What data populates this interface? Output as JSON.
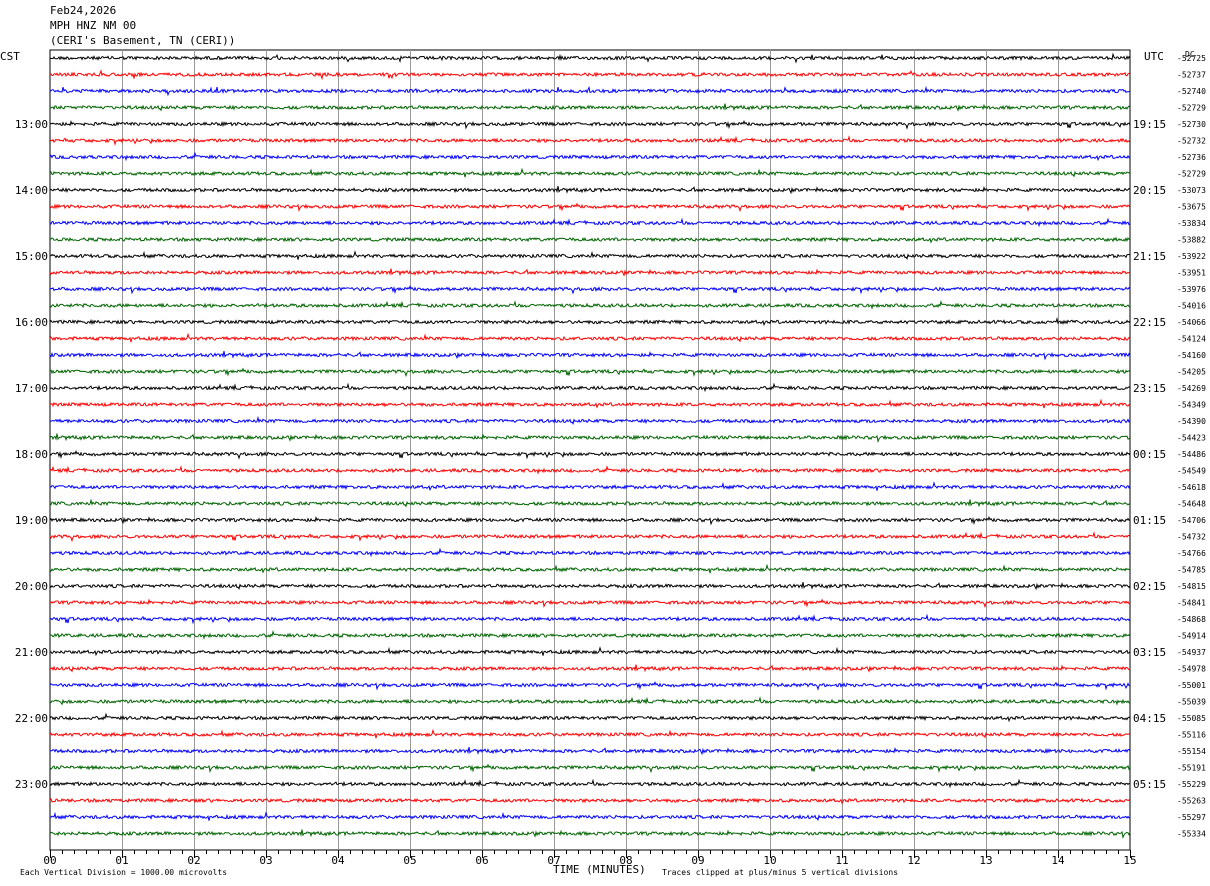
{
  "header": {
    "date": "Feb24,2026",
    "station": "MPH HNZ NM 00",
    "location": "(CERI's Basement, TN (CERI))"
  },
  "left_label": "CST",
  "right_label": "UTC",
  "dc_label": "DC",
  "footer": {
    "scale": "Each Vertical Division = 1000.00 microvolts",
    "clip": "Traces clipped at plus/minus 5 vertical divisions"
  },
  "colors": [
    "#000000",
    "#ff0000",
    "#0000ff",
    "#006400"
  ],
  "chart_data": {
    "type": "line",
    "title": "",
    "xlabel": "TIME (MINUTES)",
    "xlim": [
      0,
      15
    ],
    "x_ticks": [
      "00",
      "01",
      "02",
      "03",
      "04",
      "05",
      "06",
      "07",
      "08",
      "09",
      "10",
      "11",
      "12",
      "13",
      "14",
      "15"
    ],
    "y_labels_left": [
      "13:00",
      "14:00",
      "15:00",
      "16:00",
      "17:00",
      "18:00",
      "19:00",
      "20:00",
      "21:00",
      "22:00",
      "23:00"
    ],
    "y_labels_right": [
      "19:15",
      "20:15",
      "21:15",
      "22:15",
      "23:15",
      "00:15",
      "01:15",
      "02:15",
      "03:15",
      "04:15",
      "05:15"
    ],
    "traces_per_hour": 4,
    "first_label_trace_index": 4,
    "dc_offsets": [
      "-52725",
      "-52737",
      "-52740",
      "-52729",
      "-52730",
      "-52732",
      "-52736",
      "-52729",
      "-53073",
      "-53675",
      "-53834",
      "-53882",
      "-53922",
      "-53951",
      "-53976",
      "-54016",
      "-54066",
      "-54124",
      "-54160",
      "-54205",
      "-54269",
      "-54349",
      "-54390",
      "-54423",
      "-54486",
      "-54549",
      "-54618",
      "-54648",
      "-54706",
      "-54732",
      "-54766",
      "-54785",
      "-54815",
      "-54841",
      "-54868",
      "-54914",
      "-54937",
      "-54978",
      "-55001",
      "-55039",
      "-55085",
      "-55116",
      "-55154",
      "-55191",
      "-55229",
      "-55263",
      "-55297",
      "-55334"
    ],
    "grid": true
  }
}
